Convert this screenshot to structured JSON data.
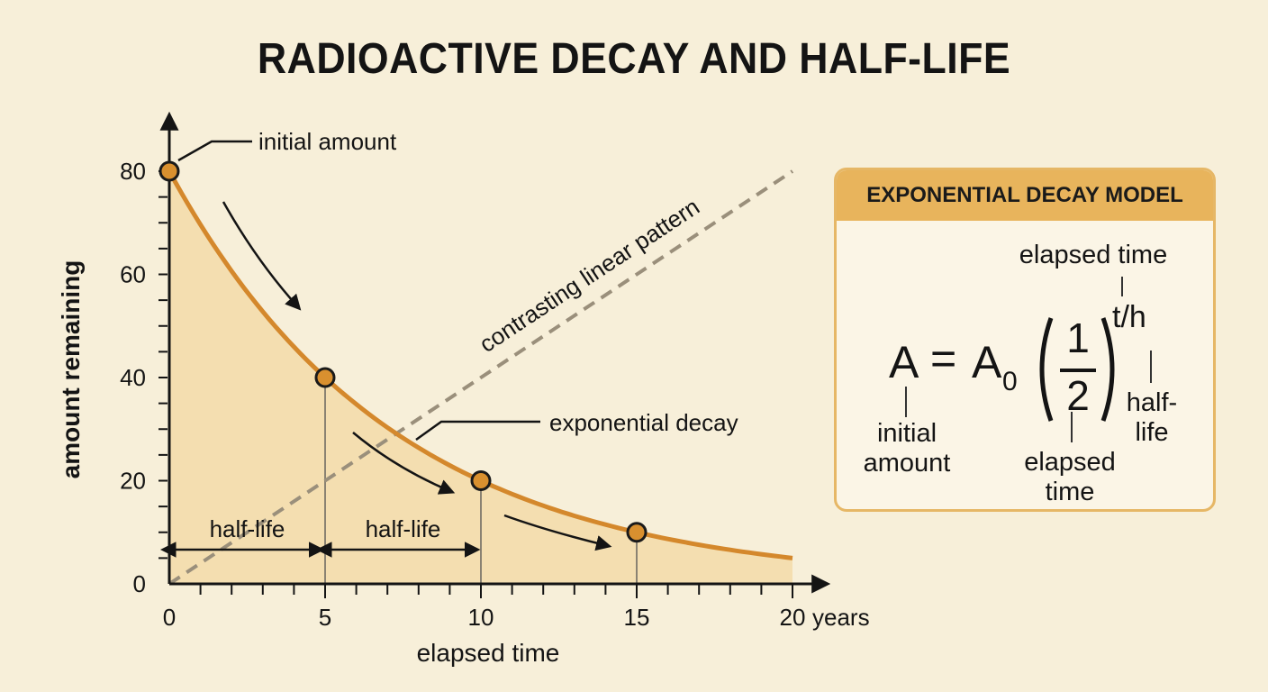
{
  "title": "RADIOACTIVE DECAY AND HALF-LIFE",
  "chart_data": {
    "type": "line",
    "x": [
      0,
      5,
      10,
      15,
      20
    ],
    "xlim": [
      0,
      20
    ],
    "ylim": [
      0,
      80
    ],
    "xticks": [
      "0",
      "5",
      "10",
      "15",
      "20"
    ],
    "x_unit": "years",
    "yticks": [
      "0",
      "20",
      "40",
      "60",
      "80"
    ],
    "xlabel": "elapsed time",
    "ylabel": "amount remaining",
    "series": [
      {
        "name": "exponential decay",
        "values": [
          80,
          40,
          20,
          10,
          5
        ],
        "color": "#d4882c",
        "marked_points": [
          [
            0,
            80
          ],
          [
            5,
            40
          ],
          [
            10,
            20
          ],
          [
            15,
            10
          ]
        ]
      },
      {
        "name": "contrasting linear pattern",
        "x": [
          0,
          20
        ],
        "values": [
          0,
          80
        ],
        "style": "dashed",
        "color": "#9a8f7b"
      }
    ],
    "half_life_years": 5,
    "annotations": {
      "initial": "initial amount",
      "linear": "contrasting linear pattern",
      "exponential": "exponential decay",
      "half_life_1": "half-life",
      "half_life_2": "half-life"
    },
    "grid": false,
    "fill_color": "#f3dba8"
  },
  "model": {
    "header": "EXPONENTIAL DECAY MODEL",
    "lhs": "A",
    "equals": "=",
    "a0": "A",
    "a0_sub": "0",
    "num": "1",
    "den": "2",
    "exponent": "t/h",
    "label_elapsed_top": "elapsed time",
    "label_half_life": "half-\nlife",
    "label_initial": "initial\namount",
    "label_elapsed_bottom": "elapsed\ntime"
  }
}
